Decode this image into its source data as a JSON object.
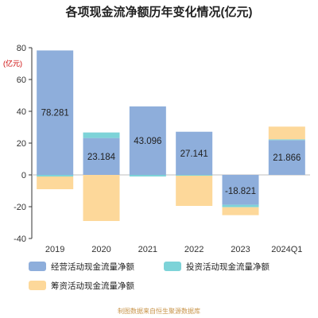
{
  "title": "各项现金流净额历年变化情况(亿元)",
  "footer": "制图数据来自恒生聚源数据库",
  "colors": {
    "operating": "#8eaedb",
    "investing": "#7dd3d8",
    "financing": "#fdd89a",
    "axis": "#333333",
    "grid": "#e8e8e8"
  },
  "chart_data": {
    "type": "bar",
    "stacked": true,
    "title": "各项现金流净额历年变化情况(亿元)",
    "ylabel": "(亿元)",
    "ylim": [
      -40,
      80
    ],
    "yticks": [
      -40,
      -20,
      0,
      20,
      40,
      60,
      80
    ],
    "categories": [
      "2019",
      "2020",
      "2021",
      "2022",
      "2023",
      "2024Q1"
    ],
    "series": [
      {
        "name": "经营活动现金流量净额",
        "values": [
          78.281,
          23.184,
          43.096,
          27.141,
          -18.821,
          21.866
        ]
      },
      {
        "name": "投资活动现金流量净额",
        "values": [
          -1.0,
          3.5,
          -1.0,
          -0.5,
          -1.5,
          0.5
        ]
      },
      {
        "name": "筹资活动现金流量净额",
        "values": [
          -8.0,
          -29.0,
          0.0,
          -19.0,
          -5.0,
          8.0
        ]
      }
    ],
    "data_labels": [
      "78.281",
      "23.184",
      "43.096",
      "27.141",
      "-18.821",
      "21.866"
    ],
    "legend_position": "bottom",
    "grid": false
  }
}
